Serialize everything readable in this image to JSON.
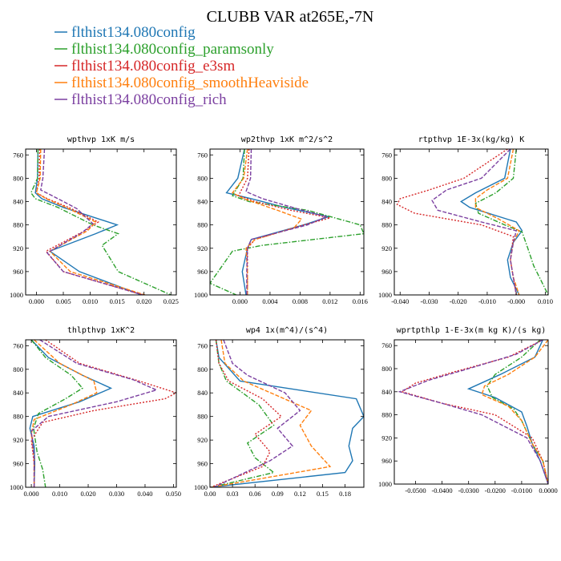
{
  "title": "CLUBB VAR at265E,-7N",
  "legend": [
    {
      "label": "flthist134.080config",
      "color": "#1f77b4",
      "dash": ""
    },
    {
      "label": "flthist134.080config_paramsonly",
      "color": "#2ca02c",
      "dash": "6,2,1.5,2"
    },
    {
      "label": "flthist134.080config_e3sm",
      "color": "#d62728",
      "dash": "2,2"
    },
    {
      "label": "flthist134.080config_smoothHeaviside",
      "color": "#ff7f0e",
      "dash": "5,2"
    },
    {
      "label": "flthist134.080config_rich",
      "color": "#7b3fa0",
      "dash": "5,2"
    }
  ],
  "chart_data": [
    {
      "type": "line",
      "title": "wpthvp   1xK m/s",
      "xlim": [
        -0.002,
        0.026
      ],
      "ylim": [
        1000,
        750
      ],
      "xticks": [
        "0.000",
        "0.005",
        "0.010",
        "0.015",
        "0.020",
        "0.025"
      ],
      "xtick_values": [
        0,
        0.005,
        0.01,
        0.015,
        0.02,
        0.025
      ],
      "yticks": [
        760,
        800,
        840,
        880,
        920,
        960,
        1000
      ],
      "series": [
        {
          "y": [
            750,
            800,
            825,
            835,
            850,
            880,
            895,
            925,
            960,
            1000
          ],
          "x": [
            0.0003,
            0.0002,
            -0.0002,
            0.001,
            0.005,
            0.015,
            0.011,
            0.0025,
            0.008,
            0.0195
          ]
        },
        {
          "y": [
            750,
            800,
            825,
            835,
            850,
            880,
            895,
            915,
            960,
            1000
          ],
          "x": [
            0.0003,
            0.0002,
            -0.001,
            -0.0002,
            0.004,
            0.0105,
            0.0152,
            0.0122,
            0.0152,
            0.025
          ]
        },
        {
          "y": [
            750,
            800,
            825,
            835,
            850,
            875,
            890,
            925,
            960,
            1000
          ],
          "x": [
            0.0006,
            0.0005,
            0.0,
            0.002,
            0.006,
            0.0115,
            0.009,
            0.0018,
            0.005,
            0.0198
          ]
        },
        {
          "y": [
            750,
            800,
            825,
            835,
            850,
            875,
            890,
            925,
            960,
            1000
          ],
          "x": [
            0.0008,
            0.0007,
            0.0,
            0.0018,
            0.0055,
            0.011,
            0.0095,
            0.0025,
            0.0063,
            0.0202
          ]
        },
        {
          "y": [
            750,
            800,
            820,
            835,
            852,
            878,
            893,
            928,
            960,
            1000
          ],
          "x": [
            0.0015,
            0.0012,
            0.0008,
            0.004,
            0.0075,
            0.0105,
            0.0085,
            0.002,
            0.005,
            0.0198
          ]
        }
      ]
    },
    {
      "type": "line",
      "title": "wp2thvp   1xK m^2/s^2",
      "xlim": [
        -0.004,
        0.0165
      ],
      "ylim": [
        1000,
        750
      ],
      "xticks": [
        "0.000",
        "0.004",
        "0.008",
        "0.012",
        "0.016"
      ],
      "xtick_values": [
        0,
        0.004,
        0.008,
        0.012,
        0.016
      ],
      "yticks": [
        760,
        800,
        840,
        880,
        920,
        960,
        1000
      ],
      "series": [
        {
          "y": [
            750,
            800,
            825,
            835,
            850,
            866,
            880,
            905,
            920,
            960,
            1000
          ],
          "x": [
            0.0006,
            -0.0003,
            -0.0018,
            0.0015,
            0.006,
            0.0118,
            0.0085,
            0.0015,
            0.001,
            0.0003,
            0.0008
          ]
        },
        {
          "y": [
            750,
            800,
            830,
            840,
            855,
            880,
            895,
            915,
            925,
            980,
            1000
          ],
          "x": [
            0.0006,
            0.0004,
            -0.001,
            0.0012,
            0.009,
            0.016,
            0.0165,
            0.003,
            -0.001,
            -0.004,
            -0.0005
          ]
        },
        {
          "y": [
            750,
            800,
            830,
            840,
            855,
            868,
            880,
            905,
            920,
            960,
            1000
          ],
          "x": [
            0.0012,
            0.001,
            -0.0002,
            0.002,
            0.0068,
            0.012,
            0.0085,
            0.002,
            0.001,
            0.001,
            0.001
          ]
        },
        {
          "y": [
            750,
            800,
            825,
            835,
            855,
            870,
            885,
            905,
            920,
            960,
            1000
          ],
          "x": [
            0.001,
            0.0005,
            -0.001,
            0.0005,
            0.005,
            0.0082,
            0.0072,
            0.002,
            0.0008,
            0.001,
            0.001
          ]
        },
        {
          "y": [
            750,
            800,
            823,
            835,
            850,
            866,
            880,
            905,
            920,
            960,
            1000
          ],
          "x": [
            0.0015,
            0.0014,
            0.0008,
            0.003,
            0.007,
            0.0115,
            0.009,
            0.0015,
            0.001,
            0.0009,
            0.0009
          ]
        }
      ]
    },
    {
      "type": "line",
      "title": "rtpthvp   1E-3x(kg/kg) K",
      "xlim": [
        -0.042,
        0.011
      ],
      "ylim": [
        1000,
        750
      ],
      "xticks": [
        "-0.040",
        "-0.030",
        "-0.020",
        "-0.010",
        "-0.000",
        "0.010"
      ],
      "xtick_values": [
        -0.04,
        -0.03,
        -0.02,
        -0.01,
        0,
        0.01
      ],
      "yticks": [
        760,
        800,
        840,
        880,
        920,
        960,
        1000
      ],
      "series": [
        {
          "y": [
            750,
            800,
            825,
            840,
            850,
            875,
            890,
            910,
            940,
            970,
            1000
          ],
          "x": [
            -0.002,
            -0.004,
            -0.014,
            -0.019,
            -0.016,
            0.0,
            0.002,
            -0.001,
            -0.003,
            -0.002,
            0.001
          ]
        },
        {
          "y": [
            750,
            800,
            825,
            843,
            860,
            880,
            892,
            920,
            950,
            980,
            1000
          ],
          "x": [
            0.0,
            -0.001,
            -0.007,
            -0.014,
            -0.013,
            -0.004,
            0.002,
            0.004,
            0.006,
            0.009,
            0.011
          ]
        },
        {
          "y": [
            750,
            800,
            820,
            835,
            845,
            860,
            880,
            900,
            940,
            970,
            1000
          ],
          "x": [
            -0.003,
            -0.018,
            -0.03,
            -0.04,
            -0.041,
            -0.035,
            -0.012,
            -0.001,
            -0.002,
            -0.001,
            0.0
          ]
        },
        {
          "y": [
            750,
            800,
            820,
            835,
            850,
            870,
            890,
            910,
            940,
            970,
            1000
          ],
          "x": [
            -0.001,
            -0.003,
            -0.01,
            -0.014,
            -0.014,
            -0.006,
            0.001,
            -0.001,
            -0.002,
            -0.001,
            0.001
          ]
        },
        {
          "y": [
            750,
            800,
            820,
            838,
            855,
            875,
            890,
            910,
            940,
            970,
            1000
          ],
          "x": [
            -0.002,
            -0.012,
            -0.024,
            -0.029,
            -0.027,
            -0.012,
            0.0,
            -0.001,
            -0.002,
            -0.001,
            0.0
          ]
        }
      ]
    },
    {
      "type": "line",
      "title": "thlpthvp   1xK^2",
      "xlim": [
        -0.002,
        0.051
      ],
      "ylim": [
        1000,
        750
      ],
      "xticks": [
        "0.000",
        "0.010",
        "0.020",
        "0.030",
        "0.040",
        "0.050"
      ],
      "xtick_values": [
        0,
        0.01,
        0.02,
        0.03,
        0.04,
        0.05
      ],
      "yticks": [
        760,
        800,
        840,
        880,
        920,
        960,
        1000
      ],
      "series": [
        {
          "y": [
            750,
            780,
            810,
            832,
            855,
            880,
            900,
            930,
            960,
            1000
          ],
          "x": [
            0.0,
            0.006,
            0.018,
            0.028,
            0.017,
            0.0005,
            -0.0005,
            0.001,
            0.0012,
            0.001
          ]
        },
        {
          "y": [
            750,
            780,
            810,
            832,
            850,
            875,
            900,
            940,
            970,
            1000
          ],
          "x": [
            0.0,
            0.005,
            0.014,
            0.018,
            0.012,
            0.0025,
            0.0008,
            0.002,
            0.004,
            0.005
          ]
        },
        {
          "y": [
            750,
            790,
            820,
            840,
            850,
            870,
            890,
            920,
            960,
            1000
          ],
          "x": [
            0.005,
            0.017,
            0.038,
            0.051,
            0.047,
            0.022,
            0.004,
            0.0,
            0.001,
            0.001
          ]
        },
        {
          "y": [
            750,
            790,
            820,
            840,
            860,
            885,
            910,
            950,
            1000
          ],
          "x": [
            0.001,
            0.01,
            0.022,
            0.023,
            0.014,
            0.001,
            0.0,
            0.001,
            0.001
          ]
        },
        {
          "y": [
            750,
            790,
            818,
            835,
            855,
            880,
            905,
            950,
            1000
          ],
          "x": [
            0.003,
            0.016,
            0.036,
            0.044,
            0.03,
            0.006,
            0.0,
            0.001,
            0.001
          ]
        }
      ]
    },
    {
      "type": "line",
      "title": "wp4   1x(m^4)/(s^4)",
      "xlim": [
        0.0,
        0.205
      ],
      "ylim": [
        1000,
        750
      ],
      "xticks": [
        "0.00",
        "0.03",
        "0.06",
        "0.09",
        "0.12",
        "0.15",
        "0.18"
      ],
      "xtick_values": [
        0,
        0.03,
        0.06,
        0.09,
        0.12,
        0.15,
        0.18
      ],
      "yticks": [
        760,
        800,
        840,
        880,
        920,
        960,
        1000
      ],
      "series": [
        {
          "y": [
            750,
            780,
            820,
            850,
            880,
            900,
            930,
            955,
            975,
            1000
          ],
          "x": [
            0.008,
            0.012,
            0.04,
            0.195,
            0.205,
            0.19,
            0.185,
            0.19,
            0.18,
            0.0
          ]
        },
        {
          "y": [
            750,
            790,
            820,
            860,
            895,
            925,
            950,
            975,
            1000
          ],
          "x": [
            0.008,
            0.012,
            0.022,
            0.065,
            0.085,
            0.05,
            0.06,
            0.085,
            0.002
          ]
        },
        {
          "y": [
            750,
            790,
            820,
            850,
            880,
            910,
            940,
            965,
            1000
          ],
          "x": [
            0.008,
            0.012,
            0.025,
            0.07,
            0.095,
            0.06,
            0.08,
            0.07,
            0.001
          ]
        },
        {
          "y": [
            750,
            790,
            820,
            845,
            870,
            895,
            930,
            965,
            1000
          ],
          "x": [
            0.015,
            0.02,
            0.045,
            0.09,
            0.135,
            0.12,
            0.135,
            0.16,
            0.002
          ]
        },
        {
          "y": [
            750,
            790,
            810,
            840,
            870,
            900,
            930,
            955,
            1000
          ],
          "x": [
            0.018,
            0.03,
            0.05,
            0.1,
            0.12,
            0.09,
            0.11,
            0.08,
            0.005
          ]
        }
      ]
    },
    {
      "type": "line",
      "title": "wprtpthlp   1-E-3x(m kg K)/(s kg)",
      "xlim": [
        -0.058,
        0.0
      ],
      "ylim": [
        1000,
        750
      ],
      "xticks": [
        "-0.0500",
        "-0.0400",
        "-0.0300",
        "-0.0200",
        "-0.0100",
        "0.0000"
      ],
      "xtick_values": [
        -0.05,
        -0.04,
        -0.03,
        -0.02,
        -0.01,
        0
      ],
      "yticks": [
        760,
        800,
        840,
        880,
        920,
        960,
        1000
      ],
      "series": [
        {
          "y": [
            750,
            780,
            810,
            835,
            850,
            875,
            900,
            930,
            960,
            1000
          ],
          "x": [
            -0.002,
            -0.005,
            -0.018,
            -0.03,
            -0.02,
            -0.01,
            -0.008,
            -0.006,
            -0.003,
            0.0
          ]
        },
        {
          "y": [
            750,
            780,
            810,
            830,
            850,
            870,
            890,
            930,
            960,
            1000
          ],
          "x": [
            -0.003,
            -0.01,
            -0.02,
            -0.023,
            -0.021,
            -0.013,
            -0.01,
            -0.006,
            -0.002,
            0.0
          ]
        },
        {
          "y": [
            750,
            780,
            805,
            825,
            840,
            860,
            880,
            920,
            960,
            1000
          ],
          "x": [
            -0.002,
            -0.015,
            -0.035,
            -0.05,
            -0.055,
            -0.04,
            -0.02,
            -0.006,
            -0.002,
            0.0
          ]
        },
        {
          "y": [
            750,
            780,
            810,
            830,
            845,
            865,
            890,
            930,
            960,
            1000
          ],
          "x": [
            0.0,
            -0.005,
            -0.015,
            -0.024,
            -0.025,
            -0.015,
            -0.01,
            -0.006,
            -0.002,
            0.0
          ]
        },
        {
          "y": [
            750,
            775,
            800,
            820,
            840,
            860,
            880,
            920,
            960,
            1000
          ],
          "x": [
            -0.002,
            -0.012,
            -0.03,
            -0.045,
            -0.056,
            -0.04,
            -0.025,
            -0.008,
            -0.003,
            0.0
          ]
        }
      ]
    }
  ]
}
